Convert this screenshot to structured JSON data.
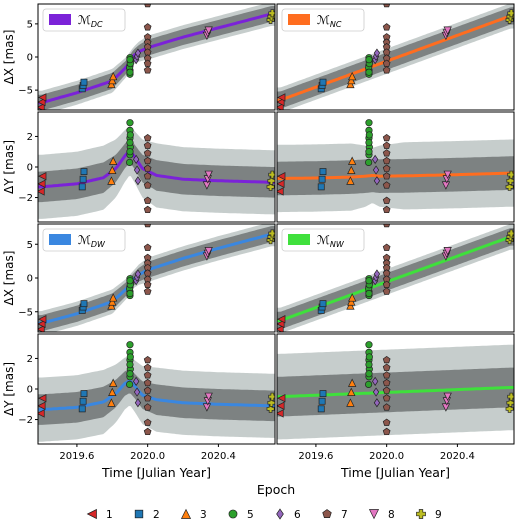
{
  "chart_data": [
    {
      "type": "line",
      "legend_label": "$\\mathcal{M}_{DC}$",
      "legend_sub": "DC",
      "ylabel": "ΔX [mas]",
      "ylim": [
        -8,
        8
      ],
      "xlim": [
        2019.38,
        2020.72
      ],
      "yticks": [
        -5,
        0,
        5
      ],
      "xticks": [],
      "xlabel": "",
      "color": "#7b22d8",
      "model_x": [
        2019.4,
        2019.6,
        2019.8,
        2019.88,
        2019.92,
        2019.95,
        2020.0,
        2020.2,
        2020.4,
        2020.7
      ],
      "model_y": [
        -6.9,
        -5.4,
        -3.6,
        -1.5,
        0.2,
        0.8,
        1.4,
        3.0,
        4.4,
        6.5
      ],
      "band_inner": [
        1.2,
        1.2,
        1.2,
        1.0,
        0.9,
        1.0,
        1.2,
        1.2,
        1.2,
        1.2
      ],
      "band_outer": [
        1.8,
        1.8,
        1.8,
        1.5,
        1.3,
        1.5,
        1.8,
        1.8,
        1.8,
        1.8
      ]
    },
    {
      "type": "line",
      "legend_label": "$\\mathcal{M}_{NC}$",
      "legend_sub": "NC",
      "ylabel": "",
      "ylim": [
        -8,
        8
      ],
      "xlim": [
        2019.38,
        2020.72
      ],
      "yticks": [],
      "xticks": [],
      "xlabel": "",
      "color": "#ff6d1f",
      "model_x": [
        2019.4,
        2020.7
      ],
      "model_y": [
        -6.5,
        6.2
      ],
      "band_inner": [
        1.3,
        1.3
      ],
      "band_outer": [
        1.9,
        1.9
      ]
    },
    {
      "type": "line",
      "legend_label": "",
      "legend_sub": "",
      "ylabel": "ΔY [mas]",
      "ylim": [
        -3.6,
        3.6
      ],
      "xlim": [
        2019.38,
        2020.72
      ],
      "yticks": [
        -2,
        0,
        2
      ],
      "xticks": [],
      "xlabel": "",
      "color": "#7b22d8",
      "model_x": [
        2019.4,
        2019.6,
        2019.75,
        2019.82,
        2019.87,
        2019.9,
        2019.93,
        2019.97,
        2020.05,
        2020.2,
        2020.4,
        2020.7
      ],
      "model_y": [
        -1.3,
        -1.1,
        -0.7,
        -0.1,
        0.7,
        1.1,
        0.6,
        -0.1,
        -0.55,
        -0.8,
        -0.9,
        -1.0
      ],
      "band_inner": [
        1.0,
        1.0,
        1.0,
        0.9,
        0.8,
        0.8,
        0.8,
        0.9,
        1.0,
        1.0,
        1.0,
        1.0
      ],
      "band_outer": [
        2.1,
        2.1,
        2.1,
        1.9,
        1.7,
        1.6,
        1.7,
        1.9,
        2.1,
        2.1,
        2.1,
        2.1
      ]
    },
    {
      "type": "line",
      "legend_label": "",
      "legend_sub": "",
      "ylabel": "",
      "ylim": [
        -3.6,
        3.6
      ],
      "xlim": [
        2019.38,
        2020.72
      ],
      "yticks": [],
      "xticks": [],
      "xlabel": "",
      "color": "#ff6d1f",
      "model_x": [
        2019.4,
        2019.6,
        2019.8,
        2019.88,
        2019.92,
        2019.96,
        2020.1,
        2020.4,
        2020.7
      ],
      "model_y": [
        -0.75,
        -0.72,
        -0.66,
        -0.6,
        -0.55,
        -0.6,
        -0.58,
        -0.5,
        -0.4
      ],
      "band_inner": [
        1.1,
        1.1,
        1.1,
        1.1,
        1.1,
        1.1,
        1.1,
        1.1,
        1.1
      ],
      "band_outer": [
        2.2,
        2.2,
        2.2,
        2.0,
        1.8,
        2.0,
        2.2,
        2.2,
        2.2
      ]
    },
    {
      "type": "line",
      "legend_label": "$\\mathcal{M}_{DW}$",
      "legend_sub": "DW",
      "ylabel": "ΔX [mas]",
      "ylim": [
        -8,
        8
      ],
      "xlim": [
        2019.38,
        2020.72
      ],
      "yticks": [
        -5,
        0,
        5
      ],
      "xticks": [],
      "xlabel": "",
      "color": "#3a87e0",
      "model_x": [
        2019.4,
        2019.6,
        2019.8,
        2019.88,
        2019.92,
        2019.95,
        2020.0,
        2020.2,
        2020.4,
        2020.7
      ],
      "model_y": [
        -6.7,
        -5.3,
        -3.5,
        -1.6,
        -0.2,
        0.5,
        1.2,
        2.9,
        4.4,
        6.5
      ],
      "band_inner": [
        1.2,
        1.2,
        1.2,
        1.0,
        0.9,
        1.0,
        1.2,
        1.2,
        1.2,
        1.2
      ],
      "band_outer": [
        1.8,
        1.8,
        1.8,
        1.5,
        1.3,
        1.5,
        1.8,
        1.8,
        1.8,
        1.8
      ]
    },
    {
      "type": "line",
      "legend_label": "$\\mathcal{M}_{NW}$",
      "legend_sub": "NW",
      "ylabel": "",
      "ylim": [
        -8,
        8
      ],
      "xlim": [
        2019.38,
        2020.72
      ],
      "yticks": [],
      "xticks": [],
      "xlabel": "",
      "color": "#3fe03c",
      "model_x": [
        2019.4,
        2020.7
      ],
      "model_y": [
        -6.3,
        6.1
      ],
      "band_inner": [
        1.3,
        1.3
      ],
      "band_outer": [
        1.9,
        1.9
      ]
    },
    {
      "type": "line",
      "legend_label": "",
      "legend_sub": "",
      "ylabel": "ΔY [mas]",
      "ylim": [
        -3.6,
        3.6
      ],
      "xlim": [
        2019.38,
        2020.72
      ],
      "yticks": [
        -2,
        0,
        2
      ],
      "xticks": [
        2019.6,
        2020.0,
        2020.4
      ],
      "xlabel": "Time [Julian Year]",
      "color": "#3a87e0",
      "model_x": [
        2019.4,
        2019.6,
        2019.75,
        2019.82,
        2019.87,
        2019.9,
        2019.93,
        2019.97,
        2020.05,
        2020.2,
        2020.4,
        2020.7
      ],
      "model_y": [
        -1.35,
        -1.2,
        -0.85,
        -0.3,
        0.35,
        0.55,
        0.15,
        -0.4,
        -0.7,
        -0.9,
        -1.0,
        -1.1
      ],
      "band_inner": [
        1.0,
        1.0,
        1.0,
        0.9,
        0.8,
        0.8,
        0.8,
        0.9,
        1.0,
        1.0,
        1.0,
        1.0
      ],
      "band_outer": [
        2.1,
        2.1,
        2.1,
        1.9,
        1.7,
        1.6,
        1.7,
        1.9,
        2.1,
        2.1,
        2.1,
        2.1
      ]
    },
    {
      "type": "line",
      "legend_label": "",
      "legend_sub": "",
      "ylabel": "",
      "ylim": [
        -3.6,
        3.6
      ],
      "xlim": [
        2019.38,
        2020.72
      ],
      "yticks": [],
      "xticks": [
        2019.6,
        2020.0,
        2020.4
      ],
      "xlabel": "Time [Julian Year]",
      "color": "#3fe03c",
      "model_x": [
        2019.4,
        2020.7
      ],
      "model_y": [
        -0.5,
        0.1
      ],
      "band_inner": [
        1.3,
        1.3
      ],
      "band_outer": [
        2.8,
        2.8
      ]
    }
  ],
  "observations": {
    "epochs": [
      {
        "label": "1",
        "marker": "triangle-left",
        "color": "#d62728",
        "t": [
          2019.395,
          2019.4,
          2019.405
        ],
        "dx": [
          -7.6,
          -6.8,
          -6.1
        ],
        "dy": [
          -1.6,
          -1.1,
          -0.6
        ]
      },
      {
        "label": "2",
        "marker": "square",
        "color": "#1f77b4",
        "t": [
          2019.63,
          2019.635,
          2019.64
        ],
        "dx": [
          -4.8,
          -4.3,
          -3.8
        ],
        "dy": [
          -1.3,
          -0.8,
          -0.3
        ]
      },
      {
        "label": "3",
        "marker": "triangle-up",
        "color": "#ff7f0e",
        "t": [
          2019.795,
          2019.8,
          2019.805
        ],
        "dx": [
          -4.1,
          -3.5,
          -2.9
        ],
        "dy": [
          -0.9,
          -0.2,
          0.4
        ]
      },
      {
        "label": "5",
        "marker": "circle",
        "color": "#2ca02c",
        "t": [
          2019.9,
          2019.9,
          2019.9,
          2019.902,
          2019.9,
          2019.898,
          2019.9,
          2019.902,
          2019.9
        ],
        "dx": [
          -2.6,
          -2.0,
          -1.3,
          -0.7,
          -0.1,
          -1.6,
          -2.3,
          -1.0,
          -0.4
        ],
        "dy": [
          2.9,
          2.4,
          1.9,
          1.3,
          0.8,
          0.3,
          1.6,
          2.1,
          1.0
        ]
      },
      {
        "label": "6",
        "marker": "diamond",
        "color": "#9467bd",
        "t": [
          2019.935,
          2019.94,
          2019.945
        ],
        "dx": [
          -0.4,
          0.1,
          0.6
        ],
        "dy": [
          0.5,
          -0.2,
          -0.9
        ]
      },
      {
        "label": "7",
        "marker": "pentagon",
        "color": "#8c564b",
        "t": [
          2020.0,
          2020.0,
          2020.0,
          2020.0,
          2020.0,
          2020.0,
          2020.0,
          2020.0,
          2020.0
        ],
        "dx": [
          8.0,
          4.5,
          3.0,
          2.2,
          1.5,
          0.7,
          -0.2,
          -1.0,
          -2.0
        ],
        "dy": [
          1.9,
          1.4,
          0.9,
          0.4,
          -0.1,
          -0.6,
          -1.2,
          -2.2,
          -2.8
        ]
      },
      {
        "label": "8",
        "marker": "triangle-down",
        "color": "#e377c2",
        "t": [
          2020.335,
          2020.34,
          2020.345
        ],
        "dx": [
          3.2,
          3.6,
          4.0
        ],
        "dy": [
          -1.2,
          -0.8,
          -0.5
        ]
      },
      {
        "label": "9",
        "marker": "plus",
        "color": "#bcbd22",
        "t": [
          2020.695,
          2020.7,
          2020.705
        ],
        "dx": [
          5.6,
          6.1,
          6.6
        ],
        "dy": [
          -1.3,
          -0.9,
          -0.5
        ]
      }
    ]
  },
  "legend": {
    "title": "Epoch",
    "items": [
      {
        "label": "1",
        "marker": "triangle-left",
        "color": "#d62728"
      },
      {
        "label": "2",
        "marker": "square",
        "color": "#1f77b4"
      },
      {
        "label": "3",
        "marker": "triangle-up",
        "color": "#ff7f0e"
      },
      {
        "label": "5",
        "marker": "circle",
        "color": "#2ca02c"
      },
      {
        "label": "6",
        "marker": "diamond",
        "color": "#9467bd"
      },
      {
        "label": "7",
        "marker": "pentagon",
        "color": "#8c564b"
      },
      {
        "label": "8",
        "marker": "triangle-down",
        "color": "#e377c2"
      },
      {
        "label": "9",
        "marker": "plus",
        "color": "#bcbd22"
      }
    ]
  }
}
